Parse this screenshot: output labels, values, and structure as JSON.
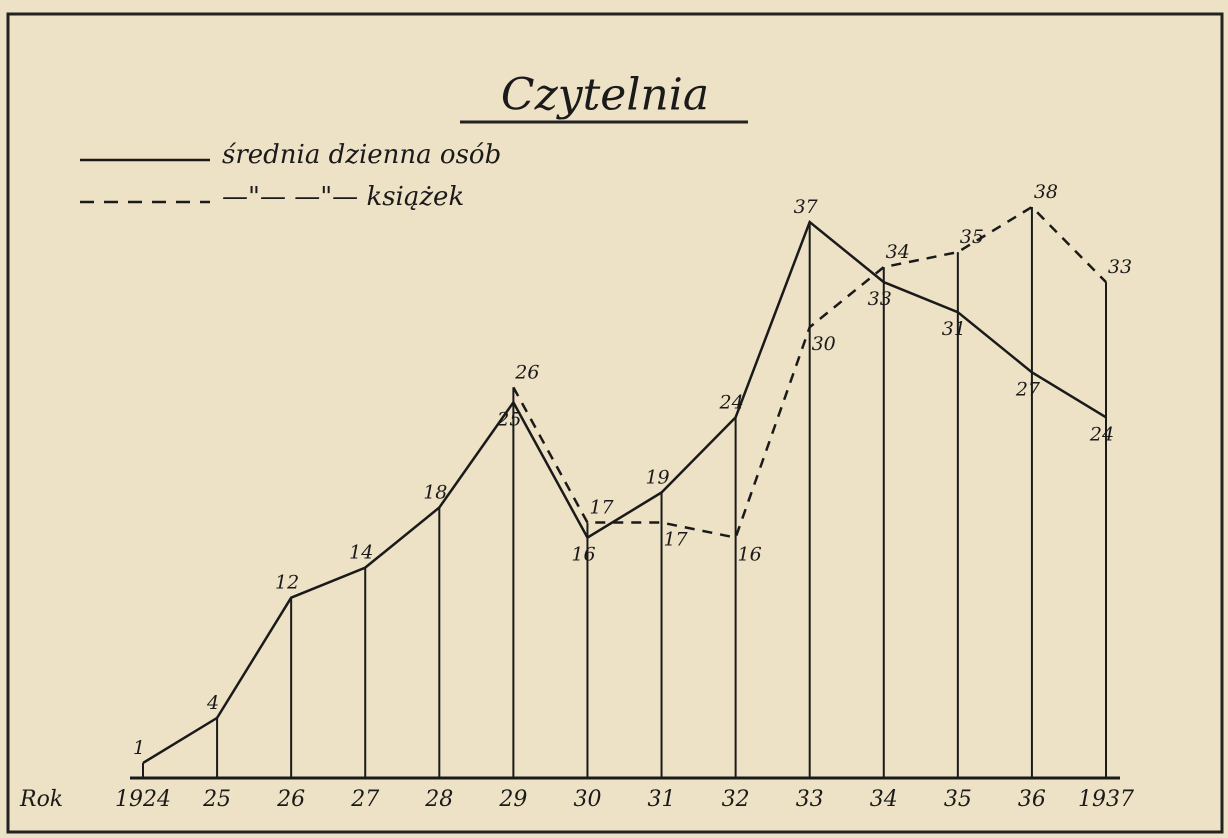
{
  "chart_data": {
    "type": "line",
    "title": "Czytelnia",
    "x_label": "Rok",
    "categories": [
      "1924",
      "25",
      "26",
      "27",
      "28",
      "29",
      "30",
      "31",
      "32",
      "33",
      "34",
      "35",
      "36",
      "1937"
    ],
    "series": [
      {
        "name": "średnia dzienna osób",
        "color": "#1a1a1a",
        "style": "solid",
        "values": [
          1,
          4,
          12,
          14,
          18,
          25,
          16,
          19,
          24,
          37,
          33,
          31,
          27,
          24
        ]
      },
      {
        "name": "—\"— —\"— książek",
        "color": "#1a1a1a",
        "style": "dashed",
        "values": [
          null,
          null,
          null,
          null,
          null,
          26,
          17,
          17,
          16,
          30,
          34,
          35,
          38,
          33
        ]
      }
    ]
  }
}
